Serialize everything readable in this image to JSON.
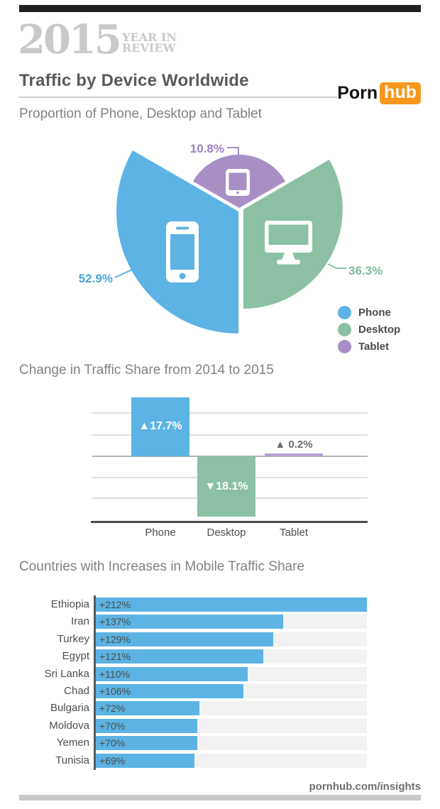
{
  "header": {
    "year": "2015",
    "year_in": "YEAR IN",
    "review": "REVIEW",
    "title": "Traffic by Device Worldwide",
    "brand_porn": "Porn",
    "brand_hub": "hub"
  },
  "meta": {
    "footer": "pornhub.com/insights"
  },
  "colors": {
    "phone_blue": "#5cb3e4",
    "desktop_green": "#8bc0a4",
    "tablet_purple": "#a78fc6",
    "tablet_bar_light": "#b7a0d3",
    "brand_orange": "#f7971d",
    "accent_bar_dark": "#231f20",
    "accent_bar_light": "#c7c8ca"
  },
  "chart_data": [
    {
      "type": "pie",
      "title": "Proportion of Phone, Desktop and Tablet",
      "style": "exploded petal pie, three ~120° wedges, radius encodes share",
      "legend_position": "bottom-right",
      "slices": [
        {
          "name": "Phone",
          "value": 52.9,
          "pct_label": "52.9%",
          "color": "#5cb3e4",
          "icon": "smartphone-icon"
        },
        {
          "name": "Desktop",
          "value": 36.3,
          "pct_label": "36.3%",
          "color": "#8bc0a4",
          "icon": "desktop-monitor-icon"
        },
        {
          "name": "Tablet",
          "value": 10.8,
          "pct_label": "10.8%",
          "color": "#a78fc6",
          "icon": "tablet-icon"
        }
      ]
    },
    {
      "type": "bar",
      "title": "Change in Traffic Share from 2014 to 2015",
      "categories": [
        "Phone",
        "Desktop",
        "Tablet"
      ],
      "values": [
        17.7,
        -18.1,
        0.2
      ],
      "bar_labels": [
        "▲17.7%",
        "▼18.1%",
        "▲ 0.2%"
      ],
      "bar_colors": [
        "#5cb3e4",
        "#8bc0a4",
        "#b7a0d3"
      ],
      "ylim": [
        -19,
        19
      ],
      "grid": true,
      "legend_position": "none"
    },
    {
      "type": "bar",
      "orientation": "horizontal",
      "title": "Countries with Increases in Mobile Traffic Share",
      "categories": [
        "Ethiopia",
        "Iran",
        "Turkey",
        "Egypt",
        "Sri Lanka",
        "Chad",
        "Bulgaria",
        "Moldova",
        "Yemen",
        "Tunisia"
      ],
      "values": [
        212,
        137,
        129,
        121,
        110,
        106,
        72,
        70,
        70,
        69
      ],
      "bar_labels": [
        "+212%",
        "+137%",
        "+129%",
        "+121%",
        "+110%",
        "+106%",
        "+72%",
        "+70%",
        "+70%",
        "+69%"
      ],
      "bar_pct": [
        100,
        69.1,
        65.4,
        61.7,
        55.9,
        54.4,
        38.1,
        37.4,
        37.4,
        36.5
      ],
      "xmax": 212,
      "bar_color": "#5cb3e4",
      "track_color": "#f2f2f3",
      "grid": false,
      "legend_position": "none"
    }
  ]
}
